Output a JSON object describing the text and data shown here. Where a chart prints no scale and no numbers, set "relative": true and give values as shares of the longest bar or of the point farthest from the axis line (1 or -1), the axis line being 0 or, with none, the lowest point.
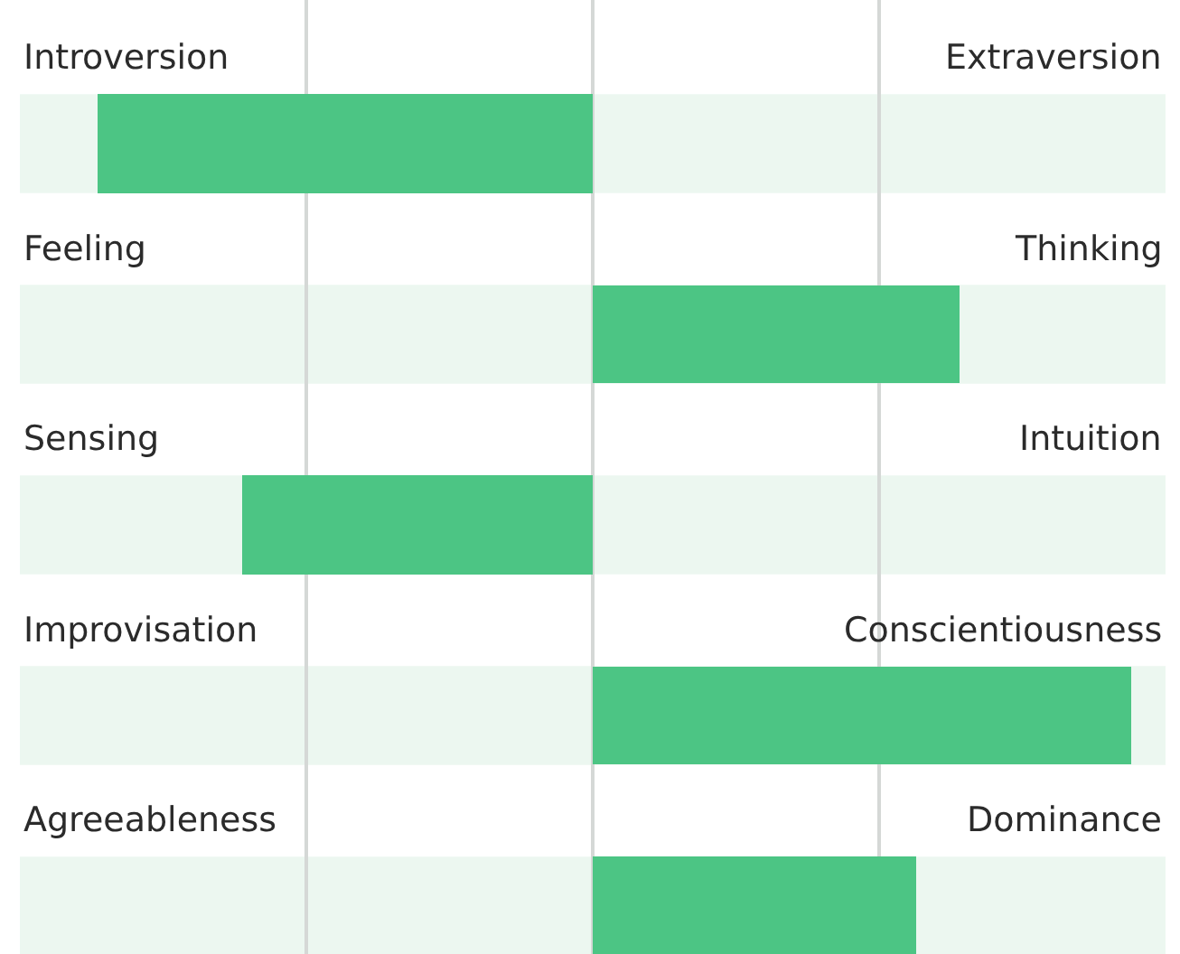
{
  "chart_data": {
    "type": "bar",
    "orientation": "horizontal",
    "relative": true,
    "categories": [
      "Introversion",
      "Feeling",
      "Sensing",
      "Improvisation",
      "Agreeableness"
    ],
    "values": [
      -0.92,
      0.68,
      -0.65,
      1,
      0.6
    ],
    "color": "#4cc584",
    "annotations": [
      "Extraversion",
      "Thinking",
      "Intuition",
      "Conscientiousness",
      "Dominance"
    ],
    "grid": "x",
    "legend": false
  }
}
